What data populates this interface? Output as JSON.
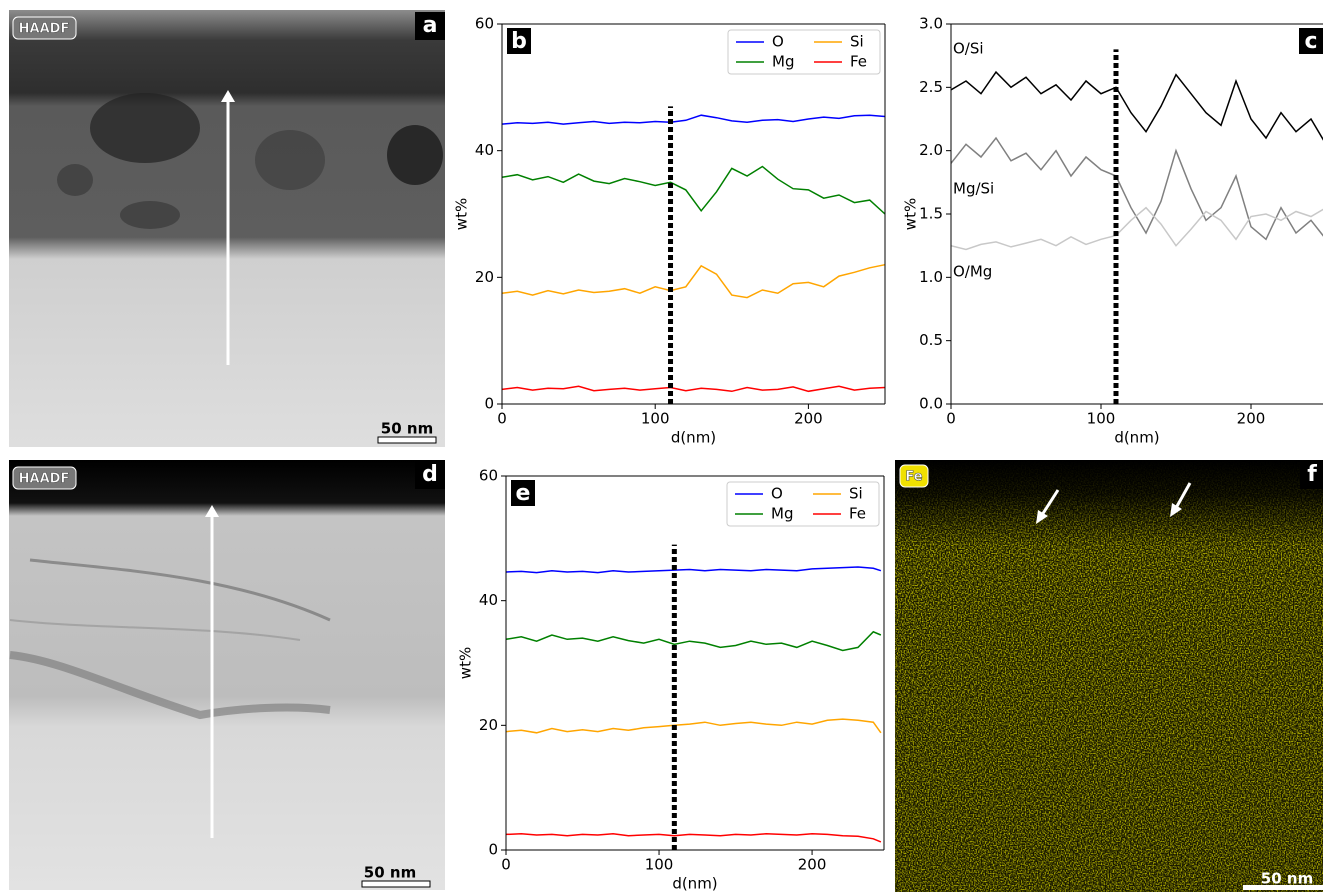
{
  "panels": [
    {
      "label": "a",
      "tag": "HAADF",
      "scale_bar": "50 nm"
    },
    {
      "label": "d",
      "tag": "HAADF",
      "scale_bar": "50 nm"
    },
    {
      "label": "f",
      "tag": "Fe",
      "scale_bar": "50 nm"
    }
  ],
  "chart_data": [
    {
      "type": "line",
      "panel": "b",
      "xlabel": "d(nm)",
      "ylabel": "wt%",
      "xlim": [
        0,
        250
      ],
      "ylim": [
        0,
        60
      ],
      "xticks": [
        0,
        100,
        200
      ],
      "yticks": [
        0,
        20,
        40,
        60
      ],
      "legend": "upper right",
      "vline": {
        "x": 110,
        "top": 47
      },
      "x": [
        0,
        10,
        20,
        30,
        40,
        50,
        60,
        70,
        80,
        90,
        100,
        110,
        120,
        130,
        140,
        150,
        160,
        170,
        180,
        190,
        200,
        210,
        220,
        230,
        240,
        250
      ],
      "series": [
        {
          "name": "O",
          "color": "#0000ff",
          "values": [
            44.2,
            44.4,
            44.3,
            44.5,
            44.2,
            44.4,
            44.6,
            44.3,
            44.5,
            44.4,
            44.6,
            44.5,
            44.8,
            45.6,
            45.2,
            44.7,
            44.5,
            44.8,
            44.9,
            44.6,
            45.0,
            45.3,
            45.1,
            45.5,
            45.6,
            45.4
          ]
        },
        {
          "name": "Mg",
          "color": "#008000",
          "values": [
            35.8,
            36.2,
            35.4,
            35.9,
            35.0,
            36.3,
            35.2,
            34.8,
            35.6,
            35.1,
            34.5,
            35.0,
            33.8,
            30.5,
            33.5,
            37.2,
            36.0,
            37.5,
            35.5,
            34.0,
            33.8,
            32.5,
            33.0,
            31.8,
            32.2,
            30.0
          ]
        },
        {
          "name": "Si",
          "color": "#ffa500",
          "values": [
            17.5,
            17.8,
            17.2,
            17.9,
            17.4,
            18.0,
            17.6,
            17.8,
            18.2,
            17.5,
            18.5,
            17.9,
            18.5,
            21.8,
            20.5,
            17.2,
            16.8,
            18.0,
            17.5,
            19.0,
            19.2,
            18.5,
            20.2,
            20.8,
            21.5,
            22.0
          ]
        },
        {
          "name": "Fe",
          "color": "#ff0000",
          "values": [
            2.3,
            2.6,
            2.2,
            2.5,
            2.4,
            2.8,
            2.1,
            2.3,
            2.5,
            2.2,
            2.4,
            2.6,
            2.1,
            2.5,
            2.3,
            2.0,
            2.6,
            2.2,
            2.3,
            2.7,
            2.0,
            2.4,
            2.8,
            2.2,
            2.5,
            2.6
          ]
        }
      ]
    },
    {
      "type": "line",
      "panel": "c",
      "xlabel": "d(nm)",
      "ylabel": "wt%",
      "xlim": [
        0,
        248
      ],
      "ylim": [
        0,
        3
      ],
      "xticks": [
        0,
        100,
        200
      ],
      "yticks": [
        {
          "value": 0,
          "label": "0.0"
        },
        0.5,
        {
          "value": 1,
          "label": "1.0"
        },
        1.5,
        {
          "value": 2,
          "label": "2.0"
        },
        2.5,
        {
          "value": 3,
          "label": "3.0"
        }
      ],
      "vline": {
        "x": 110,
        "top": 2.8
      },
      "x": [
        0,
        10,
        20,
        30,
        40,
        50,
        60,
        70,
        80,
        90,
        100,
        110,
        120,
        130,
        140,
        150,
        160,
        170,
        180,
        190,
        200,
        210,
        220,
        230,
        240,
        250
      ],
      "series": [
        {
          "name": "O/Si",
          "color": "#000000",
          "values": [
            2.48,
            2.55,
            2.45,
            2.62,
            2.5,
            2.58,
            2.45,
            2.52,
            2.4,
            2.55,
            2.45,
            2.5,
            2.3,
            2.15,
            2.35,
            2.6,
            2.45,
            2.3,
            2.2,
            2.55,
            2.25,
            2.1,
            2.3,
            2.15,
            2.25,
            2.05
          ]
        },
        {
          "name": "Mg/Si",
          "color": "#808080",
          "values": [
            1.9,
            2.05,
            1.95,
            2.1,
            1.92,
            1.98,
            1.85,
            2.0,
            1.8,
            1.95,
            1.85,
            1.8,
            1.55,
            1.35,
            1.6,
            2.0,
            1.7,
            1.45,
            1.55,
            1.8,
            1.4,
            1.3,
            1.55,
            1.35,
            1.45,
            1.3
          ]
        },
        {
          "name": "O/Mg",
          "color": "#c8c8c8",
          "values": [
            1.25,
            1.22,
            1.26,
            1.28,
            1.24,
            1.27,
            1.3,
            1.25,
            1.32,
            1.26,
            1.3,
            1.33,
            1.45,
            1.55,
            1.42,
            1.25,
            1.38,
            1.52,
            1.45,
            1.3,
            1.48,
            1.5,
            1.45,
            1.52,
            1.48,
            1.55
          ]
        }
      ]
    },
    {
      "type": "line",
      "panel": "e",
      "xlabel": "d(nm)",
      "ylabel": "wt%",
      "xlim": [
        0,
        247
      ],
      "ylim": [
        0,
        60
      ],
      "xticks": [
        0,
        100,
        200
      ],
      "yticks": [
        0,
        20,
        40,
        60
      ],
      "legend": "upper right",
      "vline": {
        "x": 110,
        "top": 49
      },
      "x": [
        0,
        10,
        20,
        30,
        40,
        50,
        60,
        70,
        80,
        90,
        100,
        110,
        120,
        130,
        140,
        150,
        160,
        170,
        180,
        190,
        200,
        210,
        220,
        230,
        240,
        245
      ],
      "series": [
        {
          "name": "O",
          "color": "#0000ff",
          "values": [
            44.6,
            44.7,
            44.5,
            44.8,
            44.6,
            44.7,
            44.5,
            44.8,
            44.6,
            44.7,
            44.8,
            44.9,
            45.0,
            44.8,
            45.0,
            44.9,
            44.8,
            45.0,
            44.9,
            44.8,
            45.1,
            45.2,
            45.3,
            45.4,
            45.2,
            44.8
          ]
        },
        {
          "name": "Mg",
          "color": "#008000",
          "values": [
            33.8,
            34.2,
            33.5,
            34.5,
            33.8,
            34.0,
            33.5,
            34.2,
            33.6,
            33.2,
            33.8,
            33.0,
            33.5,
            33.2,
            32.5,
            32.8,
            33.5,
            33.0,
            33.2,
            32.5,
            33.5,
            32.8,
            32.0,
            32.5,
            35.0,
            34.5
          ]
        },
        {
          "name": "Si",
          "color": "#ffa500",
          "values": [
            19.0,
            19.2,
            18.8,
            19.5,
            19.0,
            19.3,
            19.0,
            19.5,
            19.2,
            19.6,
            19.8,
            20.0,
            20.2,
            20.5,
            20.0,
            20.3,
            20.5,
            20.2,
            20.0,
            20.5,
            20.2,
            20.8,
            21.0,
            20.8,
            20.5,
            18.8
          ]
        },
        {
          "name": "Fe",
          "color": "#ff0000",
          "values": [
            2.5,
            2.6,
            2.4,
            2.5,
            2.3,
            2.5,
            2.4,
            2.6,
            2.3,
            2.4,
            2.5,
            2.3,
            2.5,
            2.4,
            2.3,
            2.5,
            2.4,
            2.6,
            2.5,
            2.4,
            2.6,
            2.5,
            2.3,
            2.2,
            1.8,
            1.3
          ]
        }
      ]
    }
  ]
}
